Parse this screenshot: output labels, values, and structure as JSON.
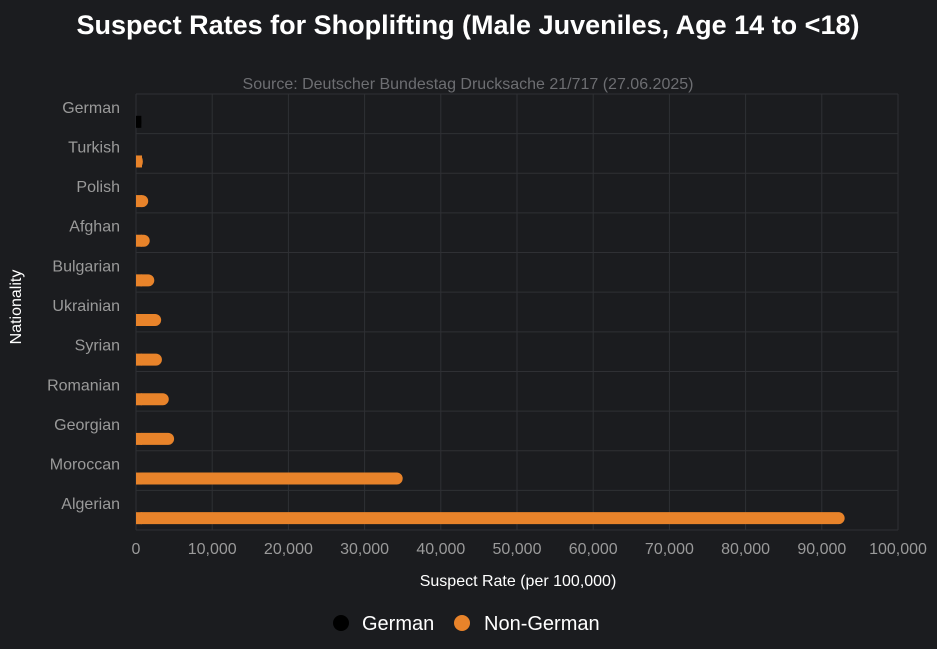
{
  "chart_data": {
    "type": "bar",
    "orientation": "horizontal",
    "title": "Suspect Rates for Shoplifting (Male Juveniles, Age 14 to <18)",
    "subtitle": "Source: Deutscher Bundestag Drucksache 21/717 (27.06.2025)",
    "xlabel": "Suspect Rate (per 100,000)",
    "ylabel": "Nationality",
    "xlim": [
      0,
      100000
    ],
    "x_ticks": [
      0,
      10000,
      20000,
      30000,
      40000,
      50000,
      60000,
      70000,
      80000,
      90000,
      100000
    ],
    "x_tick_labels": [
      "0",
      "10,000",
      "20,000",
      "30,000",
      "40,000",
      "50,000",
      "60,000",
      "70,000",
      "80,000",
      "90,000",
      "100,000"
    ],
    "grid": true,
    "legend_position": "bottom",
    "categories": [
      "German",
      "Turkish",
      "Polish",
      "Afghan",
      "Bulgarian",
      "Ukrainian",
      "Syrian",
      "Romanian",
      "Georgian",
      "Moroccan",
      "Algerian"
    ],
    "series": [
      {
        "name": "German",
        "color": "#000000",
        "values": [
          700,
          null,
          null,
          null,
          null,
          null,
          null,
          null,
          null,
          null,
          null
        ]
      },
      {
        "name": "Non-German",
        "color": "#e8832a",
        "values": [
          null,
          900,
          1600,
          1800,
          2400,
          3300,
          3400,
          4300,
          5000,
          35000,
          93000
        ]
      }
    ]
  },
  "colors": {
    "background": "#1b1c1f",
    "grid": "#2f3034",
    "title": "#ffffff",
    "subtitle": "#6d6e72",
    "tick_label": "#9a9a9a",
    "axis_label": "#ffffff",
    "legend_text": "#ffffff"
  }
}
